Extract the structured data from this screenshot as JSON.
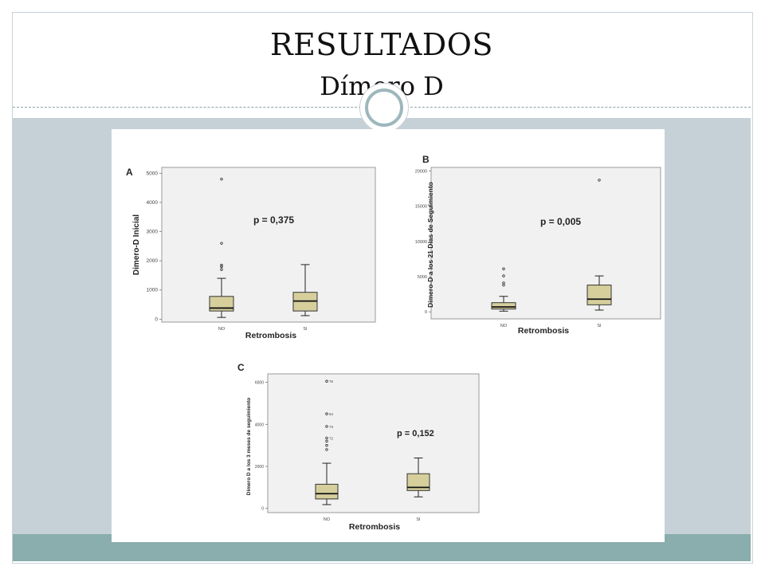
{
  "slide": {
    "title": "RESULTADOS",
    "subtitle": "Dímero D"
  },
  "chart_data": [
    {
      "type": "box",
      "panel_label": "A",
      "categories": [
        "NO",
        "SI"
      ],
      "ylabel": "Dimero-D Inicial",
      "xlabel": "Retrombosis",
      "yticks": [
        0,
        1000,
        2000,
        3000,
        4000,
        5000
      ],
      "ylim": [
        -100,
        5200
      ],
      "annotation": "p = 0,375",
      "boxes": [
        {
          "category": "NO",
          "whisker_low": 60,
          "q1": 280,
          "median": 380,
          "q3": 780,
          "whisker_high": 1400,
          "outliers": [
            1700,
            1800,
            1850,
            2600,
            4800
          ]
        },
        {
          "category": "SI",
          "whisker_low": 120,
          "q1": 280,
          "median": 620,
          "q3": 920,
          "whisker_high": 1870,
          "outliers": []
        }
      ]
    },
    {
      "type": "box",
      "panel_label": "B",
      "categories": [
        "NO",
        "SI"
      ],
      "ylabel": "Dimero-D a los 21 Dias de Seguimiento",
      "xlabel": "Retrombosis",
      "yticks": [
        0,
        5000,
        10000,
        15000,
        20000
      ],
      "ylim": [
        -1000,
        20500
      ],
      "annotation": "p = 0,005",
      "boxes": [
        {
          "category": "NO",
          "whisker_low": 100,
          "q1": 400,
          "median": 700,
          "q3": 1300,
          "whisker_high": 2200,
          "outliers": [
            3800,
            4100,
            5100,
            6100
          ]
        },
        {
          "category": "SI",
          "whisker_low": 250,
          "q1": 1000,
          "median": 1800,
          "q3": 3800,
          "whisker_high": 5100,
          "outliers": [
            18700
          ]
        }
      ]
    },
    {
      "type": "box",
      "panel_label": "C",
      "categories": [
        "NO",
        "SI"
      ],
      "ylabel": "Dimero D a los 3 meses de seguimiento",
      "xlabel": "Retrombosis",
      "yticks": [
        0,
        2000,
        4000,
        6000
      ],
      "ylim": [
        -200,
        6400
      ],
      "annotation": "p = 0,152",
      "boxes": [
        {
          "category": "NO",
          "whisker_low": 180,
          "q1": 450,
          "median": 700,
          "q3": 1150,
          "whisker_high": 2150,
          "outliers": [
            {
              "value": 2800,
              "id": ""
            },
            {
              "value": 3000,
              "id": ""
            },
            {
              "value": 3200,
              "id": ""
            },
            {
              "value": 3350,
              "id": "72"
            },
            {
              "value": 3900,
              "id": "73"
            },
            {
              "value": 4500,
              "id": "64"
            },
            {
              "value": 6050,
              "id": "76"
            }
          ]
        },
        {
          "category": "SI",
          "whisker_low": 550,
          "q1": 850,
          "median": 1000,
          "q3": 1650,
          "whisker_high": 2400,
          "outliers": []
        }
      ]
    }
  ]
}
